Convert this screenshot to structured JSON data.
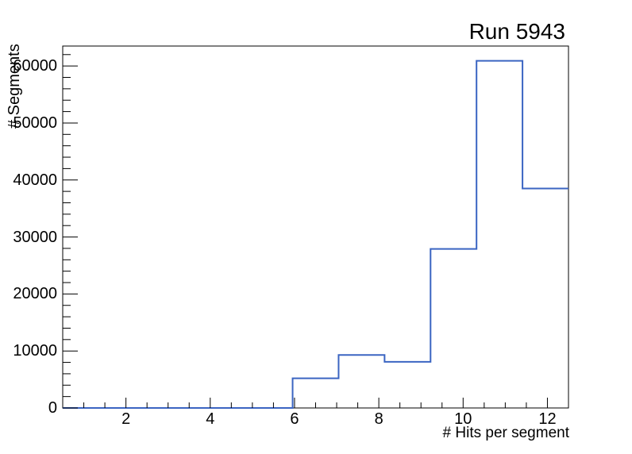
{
  "window": {
    "background": "#ffffff"
  },
  "chart_data": {
    "type": "bar",
    "subtype": "root-style-step-histogram",
    "title": "Run 5943",
    "xlabel": "# Hits per segment",
    "ylabel": "# Segments",
    "xlim": [
      0.5,
      12.5
    ],
    "ylim": [
      0,
      63500
    ],
    "bins": 11,
    "bin_width": 1.0909,
    "bin_edges": [
      0.5,
      1.5909,
      2.6818,
      3.7727,
      4.8636,
      5.9545,
      7.0455,
      8.1364,
      9.2273,
      10.3182,
      11.4091,
      12.5
    ],
    "values": [
      0,
      0,
      0,
      0,
      0,
      5200,
      9300,
      8100,
      27900,
      60900,
      38500
    ],
    "x_major_ticks": [
      2,
      4,
      6,
      8,
      10,
      12
    ],
    "x_tick_labels": [
      "2",
      "4",
      "6",
      "8",
      "10",
      "12"
    ],
    "x_minor_tick_step": 0.5,
    "y_major_ticks": [
      0,
      10000,
      20000,
      30000,
      40000,
      50000,
      60000
    ],
    "y_tick_labels": [
      "0",
      "10000",
      "20000",
      "30000",
      "40000",
      "50000",
      "60000"
    ],
    "y_minor_tick_step": 2000,
    "grid": false,
    "legend": "none",
    "line_color": "#3b65c2",
    "axis_color": "#000000"
  }
}
